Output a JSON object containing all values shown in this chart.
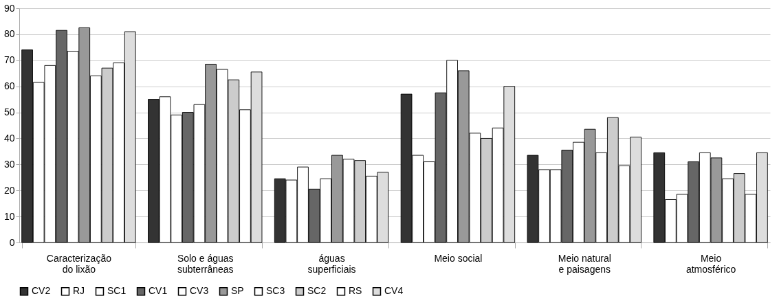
{
  "chart_data": {
    "type": "bar",
    "categories": [
      "Caracterização\ndo lixão",
      "Solo e águas\nsubterrâneas",
      "águas\nsuperficiais",
      "Meio social",
      "Meio natural\ne paisagens",
      "Meio\natmosférico"
    ],
    "series": [
      {
        "name": "CV2",
        "color": "#333333",
        "values": [
          74,
          55,
          24.5,
          57,
          33.5,
          34.5
        ]
      },
      {
        "name": "RJ",
        "color": "#ffffff",
        "values": [
          61.5,
          56,
          24,
          33.5,
          28,
          16.5
        ]
      },
      {
        "name": "SC1",
        "color": "#ffffff",
        "values": [
          68,
          49,
          29,
          31,
          28,
          18.5
        ]
      },
      {
        "name": "CV1",
        "color": "#666666",
        "values": [
          81.5,
          50,
          20.5,
          57.5,
          35.5,
          31
        ]
      },
      {
        "name": "CV3",
        "color": "#ffffff",
        "values": [
          73.5,
          53,
          24.5,
          70,
          38.5,
          34.5
        ]
      },
      {
        "name": "SP",
        "color": "#999999",
        "values": [
          82.5,
          68.5,
          33.5,
          66,
          43.5,
          32.5
        ]
      },
      {
        "name": "SC3",
        "color": "#ffffff",
        "values": [
          64,
          66.5,
          32,
          42,
          34.5,
          24.5
        ]
      },
      {
        "name": "SC2",
        "color": "#cccccc",
        "values": [
          67,
          62.5,
          31.5,
          40,
          48,
          26.5
        ]
      },
      {
        "name": "RS",
        "color": "#ffffff",
        "values": [
          69,
          51,
          25.5,
          44,
          29.5,
          18.5
        ]
      },
      {
        "name": "CV4",
        "color": "#dddddd",
        "values": [
          81,
          65.5,
          27,
          60,
          40.5,
          34.5
        ]
      }
    ],
    "ylim": [
      0,
      90
    ],
    "yticks": [
      0,
      10,
      20,
      30,
      40,
      50,
      60,
      70,
      80,
      90
    ],
    "grid": "y",
    "legend": "bottom"
  }
}
